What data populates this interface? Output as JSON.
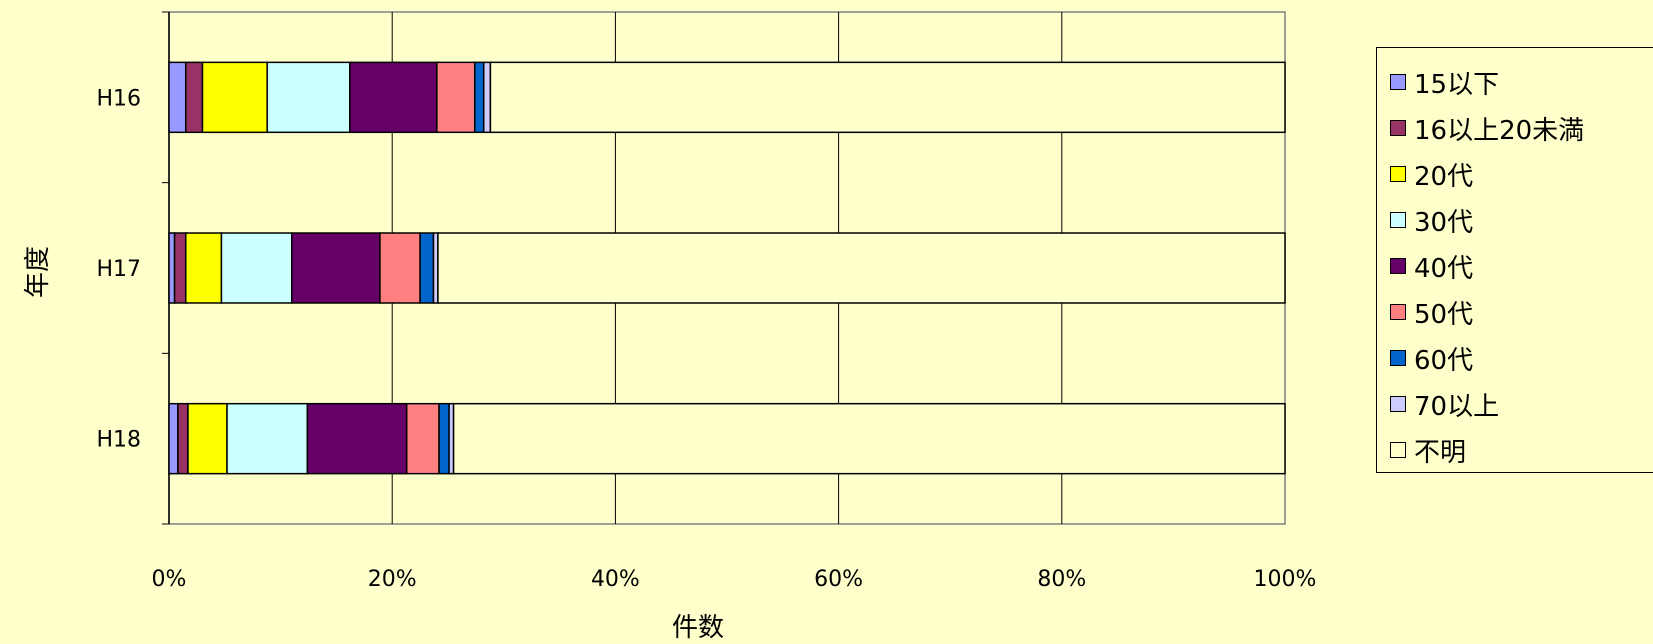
{
  "chart_data": {
    "type": "bar",
    "orientation": "horizontal",
    "stacked": true,
    "percent_stacked": true,
    "categories": [
      "H16",
      "H17",
      "H18"
    ],
    "series": [
      {
        "name": "15以下",
        "color": "#9999FF",
        "values": [
          1.5,
          0.5,
          0.8
        ]
      },
      {
        "name": "16以上20未満",
        "color": "#993366",
        "values": [
          1.5,
          1.0,
          0.9
        ]
      },
      {
        "name": "20代",
        "color": "#FFFF00",
        "values": [
          5.8,
          3.2,
          3.5
        ]
      },
      {
        "name": "30代",
        "color": "#CCFFFF",
        "values": [
          7.4,
          6.3,
          7.2
        ]
      },
      {
        "name": "40代",
        "color": "#660066",
        "values": [
          7.8,
          7.9,
          8.9
        ]
      },
      {
        "name": "50代",
        "color": "#FF8080",
        "values": [
          3.4,
          3.6,
          2.9
        ]
      },
      {
        "name": "60代",
        "color": "#0066CC",
        "values": [
          0.8,
          1.2,
          0.9
        ]
      },
      {
        "name": "70以上",
        "color": "#CCCCFF",
        "values": [
          0.6,
          0.4,
          0.4
        ]
      },
      {
        "name": "不明",
        "color": "#FFFFCC",
        "values": [
          71.2,
          75.9,
          74.5
        ]
      }
    ],
    "xlabel": "件数",
    "ylabel": "年度",
    "xlim": [
      0,
      100
    ],
    "x_ticks": [
      "0%",
      "20%",
      "40%",
      "60%",
      "80%",
      "100%"
    ],
    "grid": true,
    "legend_position": "right"
  }
}
